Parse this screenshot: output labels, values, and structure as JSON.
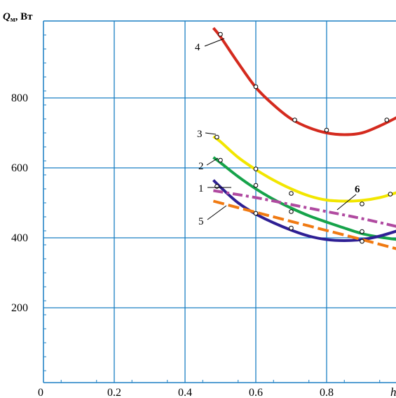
{
  "chart_data": {
    "type": "line",
    "ylabel_symbol": "Q",
    "ylabel_subscript": "м",
    "ylabel_unit": ", Вт",
    "xlabel": "h",
    "xlim": [
      0,
      0.98
    ],
    "ylim": [
      0,
      1000
    ],
    "x_ticks": [
      0,
      0.2,
      0.4,
      0.6,
      0.8
    ],
    "x_tick_labels": [
      "0",
      "0.2",
      "0.4",
      "0.6",
      "0.8"
    ],
    "y_ticks": [
      200,
      400,
      600,
      800
    ],
    "y_tick_labels": [
      "200",
      "400",
      "600",
      "800"
    ],
    "grid": true,
    "series": [
      {
        "name": "4",
        "color": "#d42a1e",
        "style": "solid",
        "x": [
          0.48,
          0.5,
          0.55,
          0.6,
          0.65,
          0.7,
          0.75,
          0.8,
          0.85,
          0.9,
          0.95,
          1.0
        ],
        "y": [
          1000,
          975,
          900,
          830,
          780,
          740,
          715,
          700,
          695,
          700,
          720,
          745
        ]
      },
      {
        "name": "3",
        "color": "#f2e600",
        "style": "solid",
        "x": [
          0.48,
          0.5,
          0.55,
          0.6,
          0.65,
          0.7,
          0.75,
          0.8,
          0.85,
          0.9,
          0.95,
          1.0
        ],
        "y": [
          690,
          675,
          630,
          595,
          565,
          540,
          520,
          508,
          505,
          507,
          515,
          530
        ]
      },
      {
        "name": "2",
        "color": "#16a34a",
        "style": "solid",
        "x": [
          0.48,
          0.5,
          0.55,
          0.6,
          0.65,
          0.7,
          0.75,
          0.8,
          0.85,
          0.9,
          0.95,
          1.0
        ],
        "y": [
          630,
          615,
          575,
          540,
          510,
          485,
          463,
          445,
          428,
          412,
          402,
          395
        ]
      },
      {
        "name": "1",
        "color": "#2e1f94",
        "style": "solid",
        "x": [
          0.48,
          0.5,
          0.55,
          0.6,
          0.65,
          0.7,
          0.75,
          0.8,
          0.85,
          0.9,
          0.95,
          1.0
        ],
        "y": [
          565,
          545,
          500,
          468,
          443,
          422,
          405,
          395,
          392,
          395,
          405,
          420
        ]
      },
      {
        "name": "6",
        "color": "#b04aa0",
        "style": "dashdot",
        "x": [
          0.48,
          0.6,
          0.7,
          0.8,
          0.9,
          1.0
        ],
        "y": [
          535,
          515,
          495,
          475,
          455,
          432
        ]
      },
      {
        "name": "5",
        "color": "#f07a12",
        "style": "dashed",
        "x": [
          0.48,
          0.6,
          0.7,
          0.8,
          0.9,
          1.0
        ],
        "y": [
          505,
          473,
          447,
          421,
          395,
          368
        ]
      }
    ],
    "markers": [
      {
        "x": 0.5,
        "y": 982
      },
      {
        "x": 0.6,
        "y": 832
      },
      {
        "x": 0.71,
        "y": 737
      },
      {
        "x": 0.8,
        "y": 708
      },
      {
        "x": 0.97,
        "y": 737
      },
      {
        "x": 0.49,
        "y": 688
      },
      {
        "x": 0.6,
        "y": 597
      },
      {
        "x": 0.7,
        "y": 527
      },
      {
        "x": 0.9,
        "y": 497
      },
      {
        "x": 0.98,
        "y": 525
      },
      {
        "x": 0.5,
        "y": 622
      },
      {
        "x": 0.6,
        "y": 550
      },
      {
        "x": 0.7,
        "y": 475
      },
      {
        "x": 0.9,
        "y": 418
      },
      {
        "x": 0.49,
        "y": 547
      },
      {
        "x": 0.6,
        "y": 470
      },
      {
        "x": 0.7,
        "y": 428
      },
      {
        "x": 0.9,
        "y": 390
      }
    ],
    "annotations": [
      {
        "text": "4",
        "series": "4"
      },
      {
        "text": "3",
        "series": "3"
      },
      {
        "text": "2",
        "series": "2"
      },
      {
        "text": "1",
        "series": "1"
      },
      {
        "text": "5",
        "series": "5"
      },
      {
        "text": "6",
        "series": "6"
      }
    ]
  }
}
